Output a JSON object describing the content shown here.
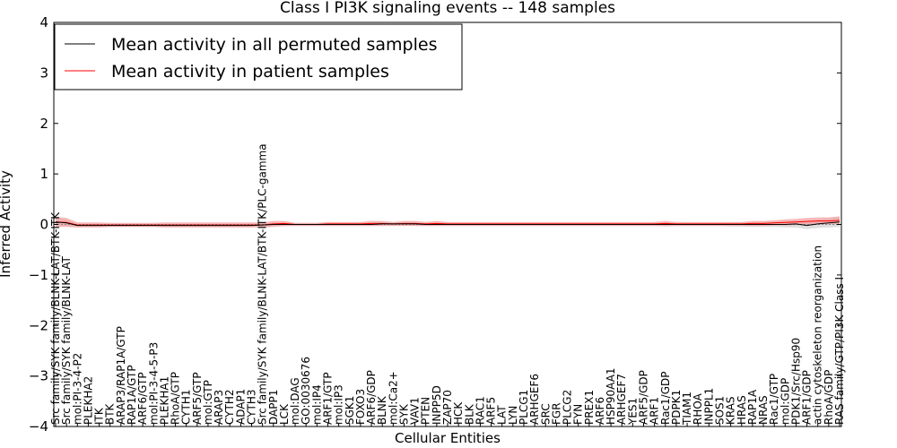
{
  "chart_data": {
    "type": "line",
    "title": "Class I PI3K signaling events -- 148 samples",
    "xlabel": "Cellular Entities",
    "ylabel": "Inferred Activity",
    "ylim": [
      -4,
      4
    ],
    "yticks": [
      -4,
      -3,
      -2,
      -1,
      0,
      1,
      2,
      3,
      4
    ],
    "ytick_labels": [
      "−4",
      "−3",
      "−2",
      "−1",
      "0",
      "1",
      "2",
      "3",
      "4"
    ],
    "grid": false,
    "legend_position": "top-left",
    "colors": {
      "permuted": "#000000",
      "patient": "#ff0000",
      "patient_band": "#f4a0a0",
      "permuted_band": "#c8c8c8"
    },
    "categories": [
      "Src family/SYK family/BLNK-LAT/BTK-ITK",
      "Src family/SYK family/BLNK-LAT",
      "mol:PI-3-4-P2",
      "PLEKHA2",
      "ITK",
      "BTK",
      "ARAP3/RAP1A/GTP",
      "RAP1A/GTP",
      "ARF6/GTP",
      "mol:PI-3-4-5-P3",
      "PLEKHA1",
      "RhoA/GTP",
      "CYTH1",
      "ARF5/GTP",
      "mol:GTP",
      "ARAP3",
      "CYTH2",
      "ADAP1",
      "CYTH3",
      "Src family/SYK family/BLNK-LAT/BTK-ITK/PLC-gamma",
      "DAPP1",
      "LCK",
      "mol:DAG",
      "GO:0030676",
      "mol:IP4",
      "ARF1/GTP",
      "mol:IP3",
      "SGK1",
      "FOXO3",
      "ARF6/GDP",
      "BLNK",
      "mol:Ca2+",
      "SYK",
      "VAV1",
      "PTEN",
      "INPP5D",
      "ZAP70",
      "HCK",
      "BLK",
      "RAC1",
      "ARF5",
      "LAT",
      "LYN",
      "PLCG1",
      "ARHGEF6",
      "SRC",
      "FGR",
      "PLCG2",
      "FYN",
      "PREX1",
      "ARF6",
      "HSP90AA1",
      "ARHGEF7",
      "YES1",
      "ARF5/GDP",
      "ARF1",
      "Rac1/GDP",
      "PDPK1",
      "TIAM1",
      "RHOA",
      "INPPL1",
      "SOS1",
      "KRAS",
      "HRAS",
      "RAP1A",
      "NRAS",
      "Rac1/GTP",
      "mol:GDP",
      "PDK1/Src/Hsp90",
      "ARF1/GDP",
      "actin cytoskeleton reorganization",
      "RhoA/GDP",
      "RAS family/GTP/PI3K Class I"
    ],
    "series": [
      {
        "name": "Mean activity in all permuted samples",
        "color": "#000000",
        "values": [
          0.05,
          0.03,
          -0.02,
          -0.02,
          -0.02,
          -0.02,
          -0.02,
          -0.02,
          -0.02,
          -0.02,
          -0.02,
          -0.02,
          -0.02,
          -0.02,
          -0.02,
          -0.02,
          -0.02,
          -0.02,
          -0.02,
          -0.01,
          0.0,
          0.0,
          0.0,
          0.0,
          0.0,
          0.0,
          0.0,
          0.0,
          0.0,
          0.0,
          0.01,
          0.01,
          0.01,
          0.01,
          0.0,
          0.0,
          0.0,
          0.0,
          0.0,
          0.0,
          0.0,
          0.0,
          0.0,
          0.0,
          0.0,
          0.0,
          0.0,
          0.0,
          0.0,
          0.0,
          0.0,
          0.0,
          0.0,
          0.0,
          0.0,
          0.0,
          0.0,
          0.0,
          0.0,
          0.0,
          0.0,
          0.0,
          0.0,
          0.0,
          0.0,
          0.0,
          0.0,
          0.0,
          0.01,
          -0.02,
          0.01,
          0.03,
          0.05
        ],
        "band": [
          0.08,
          0.06,
          0.03,
          0.03,
          0.03,
          0.03,
          0.03,
          0.03,
          0.03,
          0.03,
          0.03,
          0.03,
          0.03,
          0.03,
          0.03,
          0.03,
          0.03,
          0.03,
          0.03,
          0.03,
          0.03,
          0.03,
          0.03,
          0.03,
          0.03,
          0.03,
          0.03,
          0.03,
          0.03,
          0.03,
          0.03,
          0.03,
          0.03,
          0.03,
          0.03,
          0.03,
          0.03,
          0.03,
          0.03,
          0.03,
          0.03,
          0.03,
          0.03,
          0.03,
          0.03,
          0.03,
          0.03,
          0.03,
          0.03,
          0.03,
          0.03,
          0.03,
          0.03,
          0.03,
          0.03,
          0.03,
          0.04,
          0.03,
          0.03,
          0.03,
          0.03,
          0.03,
          0.04,
          0.04,
          0.05,
          0.05,
          0.05,
          0.06,
          0.07,
          0.07,
          0.08,
          0.09,
          0.1
        ]
      },
      {
        "name": "Mean activity in patient samples",
        "color": "#ff0000",
        "values": [
          0.05,
          0.04,
          -0.01,
          -0.01,
          -0.01,
          -0.01,
          -0.01,
          -0.01,
          -0.01,
          -0.01,
          -0.01,
          -0.01,
          -0.01,
          -0.01,
          -0.01,
          -0.01,
          -0.01,
          -0.01,
          -0.01,
          -0.01,
          0.01,
          0.02,
          0.0,
          0.0,
          0.0,
          0.01,
          0.01,
          0.01,
          0.01,
          0.02,
          0.02,
          0.01,
          0.02,
          0.02,
          0.01,
          0.02,
          0.01,
          0.01,
          0.01,
          0.01,
          0.01,
          0.01,
          0.01,
          0.01,
          0.01,
          0.01,
          0.01,
          0.01,
          0.01,
          0.01,
          0.01,
          0.01,
          0.01,
          0.01,
          0.01,
          0.01,
          0.02,
          0.01,
          0.01,
          0.01,
          0.01,
          0.01,
          0.01,
          0.01,
          0.02,
          0.02,
          0.03,
          0.04,
          0.05,
          0.06,
          0.07,
          0.07,
          0.08
        ],
        "band": [
          0.1,
          0.09,
          0.05,
          0.05,
          0.05,
          0.04,
          0.04,
          0.04,
          0.04,
          0.04,
          0.05,
          0.05,
          0.05,
          0.05,
          0.05,
          0.05,
          0.05,
          0.05,
          0.05,
          0.05,
          0.06,
          0.05,
          0.03,
          0.03,
          0.03,
          0.04,
          0.04,
          0.04,
          0.04,
          0.05,
          0.05,
          0.04,
          0.05,
          0.05,
          0.04,
          0.05,
          0.04,
          0.04,
          0.04,
          0.04,
          0.04,
          0.04,
          0.04,
          0.04,
          0.04,
          0.04,
          0.04,
          0.04,
          0.04,
          0.04,
          0.04,
          0.04,
          0.04,
          0.04,
          0.04,
          0.04,
          0.05,
          0.04,
          0.04,
          0.04,
          0.04,
          0.04,
          0.04,
          0.04,
          0.05,
          0.05,
          0.05,
          0.06,
          0.06,
          0.07,
          0.07,
          0.07,
          0.08
        ]
      }
    ]
  }
}
